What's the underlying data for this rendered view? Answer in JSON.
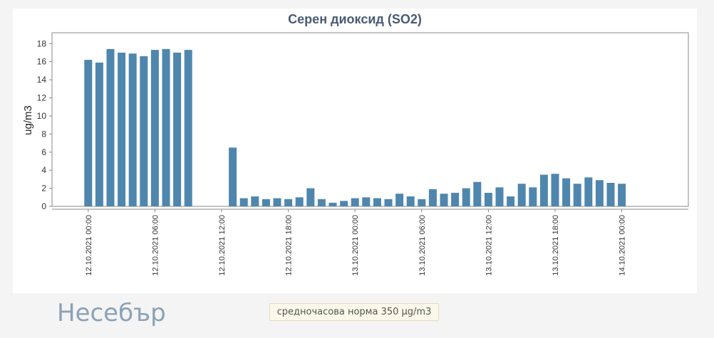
{
  "page": {
    "station_name": "Несебър",
    "norm_text": "средночасова норма 350 µg/m3"
  },
  "colors": {
    "bar": "#4f86ad",
    "title": "#4a5b72"
  },
  "chart_data": {
    "type": "bar",
    "title": "Серен диоксид (SO2)",
    "xlabel": "",
    "ylabel": "ug/m3",
    "ylim": [
      0,
      19.2
    ],
    "yticks": [
      0,
      2,
      4,
      6,
      8,
      10,
      12,
      14,
      16,
      18
    ],
    "grid": false,
    "legend": "none",
    "x_ticks": [
      {
        "index": 0,
        "label": "12.10.2021 00:00"
      },
      {
        "index": 6,
        "label": "12.10.2021 06:00"
      },
      {
        "index": 12,
        "label": "12.10.2021 12:00"
      },
      {
        "index": 18,
        "label": "12.10.2021 18:00"
      },
      {
        "index": 24,
        "label": "13.10.2021 00:00"
      },
      {
        "index": 30,
        "label": "13.10.2021 06:00"
      },
      {
        "index": 36,
        "label": "13.10.2021 12:00"
      },
      {
        "index": 42,
        "label": "13.10.2021 18:00"
      },
      {
        "index": 48,
        "label": "14.10.2021 00:00"
      }
    ],
    "series": [
      {
        "values": [
          16.2,
          15.9,
          17.4,
          17.0,
          16.9,
          16.6,
          17.3,
          17.4,
          17.0,
          17.3,
          null,
          null,
          null,
          6.5,
          0.9,
          1.1,
          0.8,
          0.9,
          0.8,
          1.0,
          2.0,
          0.8,
          0.4,
          0.6,
          0.9,
          1.0,
          0.9,
          0.8,
          1.4,
          1.1,
          0.8,
          1.9,
          1.4,
          1.5,
          2.0,
          2.7,
          1.5,
          2.1,
          1.1,
          2.5,
          2.1,
          3.5,
          3.6,
          3.1,
          2.5,
          3.2,
          2.9,
          2.6,
          2.5
        ]
      }
    ]
  }
}
